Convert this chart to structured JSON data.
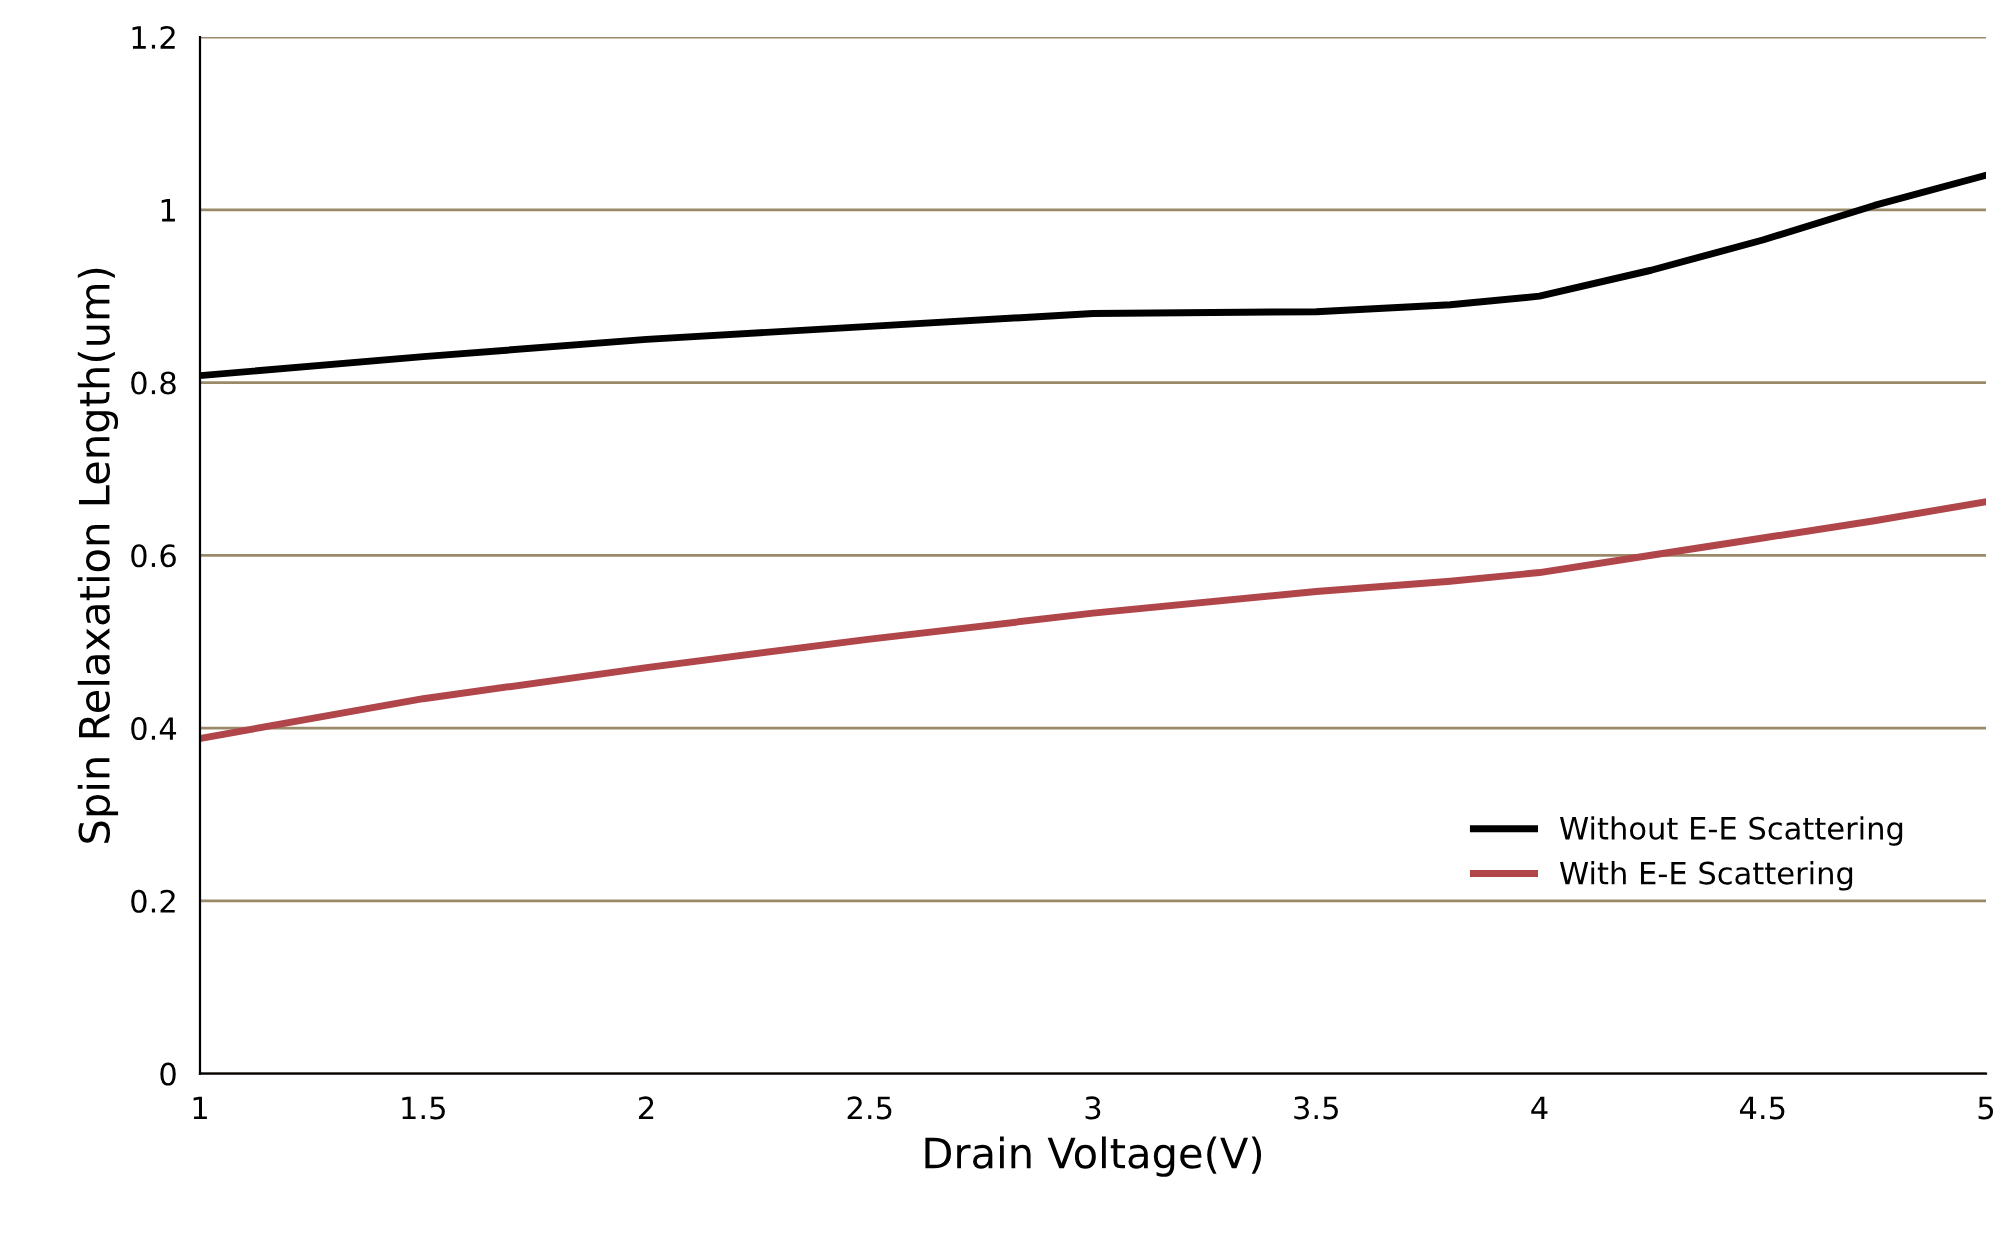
{
  "chart_data": {
    "type": "line",
    "xlabel": "Drain Voltage(V)",
    "ylabel": "Spin Relaxation Length(um)",
    "x": [
      1,
      1.5,
      2,
      2.5,
      3,
      3.5,
      3.8,
      4,
      4.25,
      4.5,
      4.75,
      5
    ],
    "series": [
      {
        "name": "Without E-E Scattering",
        "color": "#000000",
        "values": [
          0.808,
          0.83,
          0.85,
          0.865,
          0.88,
          0.882,
          0.89,
          0.9,
          0.93,
          0.965,
          1.005,
          1.04
        ]
      },
      {
        "name": "With E-E Scattering",
        "color": "#b0454a",
        "values": [
          0.388,
          0.434,
          0.47,
          0.503,
          0.533,
          0.558,
          0.57,
          0.58,
          0.6,
          0.62,
          0.64,
          0.662
        ]
      }
    ],
    "xlim": [
      1,
      5
    ],
    "xticks": [
      1,
      1.5,
      2,
      2.5,
      3,
      3.5,
      4,
      4.5,
      5
    ],
    "ylim": [
      0,
      1.2
    ],
    "yticks": [
      0,
      0.2,
      0.4,
      0.6,
      0.8,
      1,
      1.2
    ],
    "grid": "y",
    "legend": "lower right",
    "marker": "none",
    "line_style": "solid"
  }
}
